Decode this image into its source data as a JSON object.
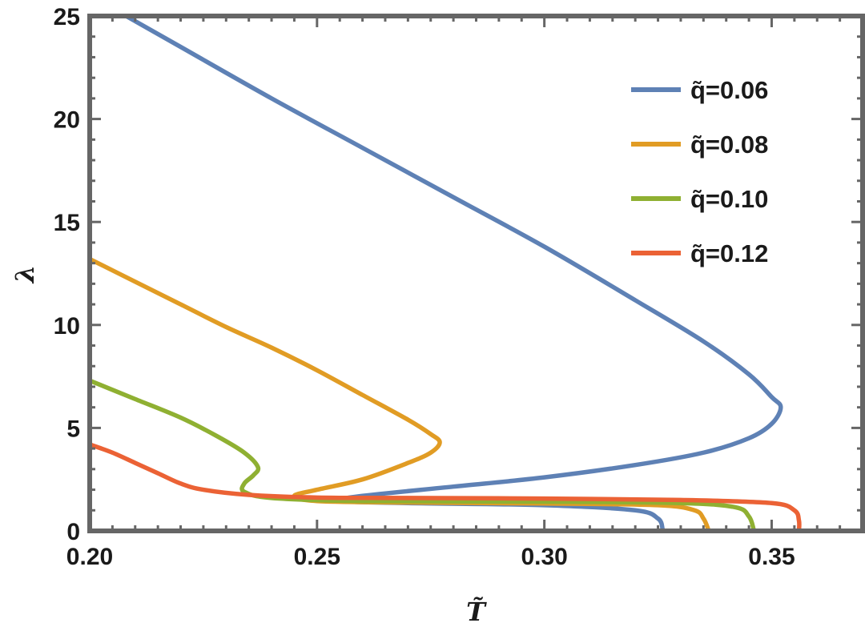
{
  "chart_data": {
    "type": "line",
    "title": "",
    "xlabel": "T̃",
    "ylabel": "λ",
    "xlim": [
      0.2,
      0.37
    ],
    "ylim": [
      0,
      25
    ],
    "xticks": [
      0.2,
      0.25,
      0.3,
      0.35
    ],
    "xtick_labels": [
      "0.20",
      "0.25",
      "0.30",
      "0.35"
    ],
    "yticks": [
      0,
      5,
      10,
      15,
      20,
      25
    ],
    "ytick_labels": [
      "0",
      "5",
      "10",
      "15",
      "20",
      "25"
    ],
    "grid": false,
    "legend_position": "top-right",
    "series": [
      {
        "name": "q̃=0.06",
        "color": "#5e81b5",
        "points": [
          [
            0.208,
            25.0
          ],
          [
            0.22,
            23.5
          ],
          [
            0.24,
            21.0
          ],
          [
            0.26,
            18.6
          ],
          [
            0.28,
            16.2
          ],
          [
            0.3,
            13.8
          ],
          [
            0.32,
            11.2
          ],
          [
            0.335,
            9.2
          ],
          [
            0.345,
            7.6
          ],
          [
            0.35,
            6.5
          ],
          [
            0.352,
            6.0
          ],
          [
            0.35,
            5.2
          ],
          [
            0.345,
            4.5
          ],
          [
            0.335,
            3.8
          ],
          [
            0.32,
            3.2
          ],
          [
            0.3,
            2.6
          ],
          [
            0.28,
            2.15
          ],
          [
            0.26,
            1.7
          ],
          [
            0.255,
            1.45
          ],
          [
            0.27,
            1.35
          ],
          [
            0.3,
            1.25
          ],
          [
            0.32,
            1.0
          ],
          [
            0.325,
            0.6
          ],
          [
            0.326,
            0.1
          ],
          [
            0.326,
            0.0
          ]
        ]
      },
      {
        "name": "q̃=0.08",
        "color": "#e19c24",
        "points": [
          [
            0.2,
            13.2
          ],
          [
            0.21,
            12.1
          ],
          [
            0.22,
            11.0
          ],
          [
            0.23,
            9.9
          ],
          [
            0.24,
            8.9
          ],
          [
            0.25,
            7.8
          ],
          [
            0.26,
            6.6
          ],
          [
            0.27,
            5.4
          ],
          [
            0.275,
            4.7
          ],
          [
            0.277,
            4.3
          ],
          [
            0.275,
            3.8
          ],
          [
            0.27,
            3.3
          ],
          [
            0.26,
            2.5
          ],
          [
            0.25,
            2.0
          ],
          [
            0.245,
            1.7
          ],
          [
            0.25,
            1.45
          ],
          [
            0.27,
            1.38
          ],
          [
            0.3,
            1.33
          ],
          [
            0.325,
            1.25
          ],
          [
            0.333,
            1.0
          ],
          [
            0.335,
            0.6
          ],
          [
            0.336,
            0.1
          ],
          [
            0.336,
            0.0
          ]
        ]
      },
      {
        "name": "q̃=0.10",
        "color": "#8fb032",
        "points": [
          [
            0.2,
            7.3
          ],
          [
            0.21,
            6.4
          ],
          [
            0.22,
            5.5
          ],
          [
            0.228,
            4.6
          ],
          [
            0.234,
            3.8
          ],
          [
            0.237,
            3.1
          ],
          [
            0.236,
            2.7
          ],
          [
            0.234,
            2.3
          ],
          [
            0.234,
            1.9
          ],
          [
            0.24,
            1.6
          ],
          [
            0.26,
            1.45
          ],
          [
            0.3,
            1.42
          ],
          [
            0.33,
            1.35
          ],
          [
            0.342,
            1.15
          ],
          [
            0.345,
            0.7
          ],
          [
            0.346,
            0.1
          ],
          [
            0.346,
            0.0
          ]
        ]
      },
      {
        "name": "q̃=0.12",
        "color": "#eb6235",
        "points": [
          [
            0.2,
            4.2
          ],
          [
            0.205,
            3.8
          ],
          [
            0.21,
            3.3
          ],
          [
            0.215,
            2.8
          ],
          [
            0.22,
            2.3
          ],
          [
            0.225,
            2.0
          ],
          [
            0.235,
            1.75
          ],
          [
            0.25,
            1.62
          ],
          [
            0.27,
            1.6
          ],
          [
            0.3,
            1.57
          ],
          [
            0.33,
            1.5
          ],
          [
            0.35,
            1.35
          ],
          [
            0.355,
            1.0
          ],
          [
            0.356,
            0.5
          ],
          [
            0.356,
            0.0
          ]
        ]
      }
    ]
  }
}
